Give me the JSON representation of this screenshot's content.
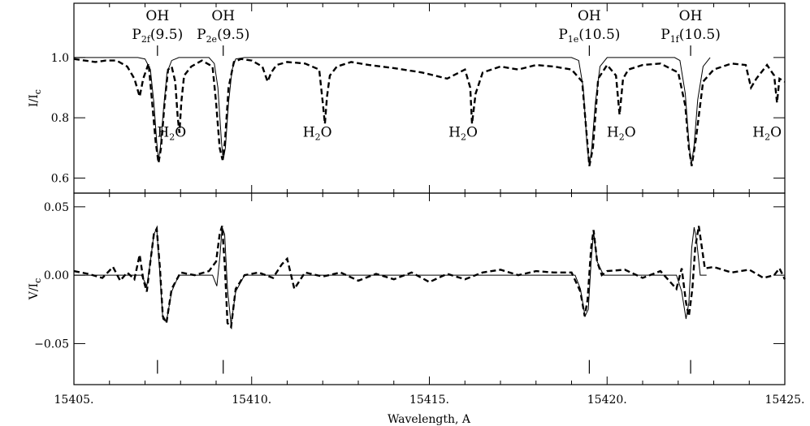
{
  "chart_data": [
    {
      "type": "line",
      "panel": "top",
      "ylabel_main": "I/I",
      "ylabel_sub": "c",
      "xlim": [
        15405,
        15425
      ],
      "ylim": [
        0.55,
        1.18
      ],
      "yticks": [
        0.6,
        0.8,
        1.0
      ],
      "ytick_labels": [
        "0.6",
        "0.8",
        "1.0"
      ],
      "series": [
        {
          "style": "dashed-thick",
          "x": [
            15405.0,
            15405.3,
            15405.6,
            15405.9,
            15406.2,
            15406.5,
            15406.7,
            15406.85,
            15406.95,
            15407.1,
            15407.2,
            15407.3,
            15407.38,
            15407.45,
            15407.55,
            15407.65,
            15407.75,
            15407.85,
            15407.92,
            15407.97,
            15408.02,
            15408.1,
            15408.3,
            15408.6,
            15408.9,
            15409.0,
            15409.1,
            15409.18,
            15409.25,
            15409.35,
            15409.5,
            15409.7,
            15410.0,
            15410.3,
            15410.45,
            15410.55,
            15410.7,
            15411.0,
            15411.5,
            15411.9,
            15412.0,
            15412.06,
            15412.12,
            15412.2,
            15412.4,
            15412.8,
            15413.3,
            15414.0,
            15414.8,
            15415.5,
            15416.0,
            15416.15,
            15416.2,
            15416.3,
            15416.5,
            15417.0,
            15417.5,
            15418.0,
            15418.5,
            15419.0,
            15419.3,
            15419.42,
            15419.5,
            15419.6,
            15419.75,
            15420.0,
            15420.25,
            15420.35,
            15420.45,
            15420.6,
            15421.0,
            15421.5,
            15422.0,
            15422.2,
            15422.3,
            15422.38,
            15422.5,
            15422.7,
            15423.0,
            15423.5,
            15423.9,
            15424.05,
            15424.2,
            15424.5,
            15424.7,
            15424.78,
            15424.85,
            15425.0
          ],
          "y": [
            0.995,
            0.99,
            0.985,
            0.99,
            0.99,
            0.97,
            0.93,
            0.87,
            0.93,
            0.98,
            0.85,
            0.72,
            0.65,
            0.7,
            0.85,
            0.96,
            0.97,
            0.92,
            0.8,
            0.75,
            0.85,
            0.94,
            0.97,
            0.99,
            0.97,
            0.85,
            0.7,
            0.66,
            0.72,
            0.9,
            0.985,
            0.995,
            0.99,
            0.97,
            0.92,
            0.95,
            0.975,
            0.985,
            0.98,
            0.96,
            0.85,
            0.78,
            0.87,
            0.94,
            0.97,
            0.985,
            0.975,
            0.965,
            0.95,
            0.93,
            0.96,
            0.9,
            0.78,
            0.88,
            0.95,
            0.97,
            0.96,
            0.975,
            0.97,
            0.96,
            0.92,
            0.75,
            0.64,
            0.7,
            0.93,
            0.975,
            0.94,
            0.81,
            0.93,
            0.96,
            0.975,
            0.98,
            0.95,
            0.84,
            0.7,
            0.64,
            0.73,
            0.92,
            0.96,
            0.98,
            0.975,
            0.9,
            0.93,
            0.975,
            0.94,
            0.85,
            0.93,
            0.92
          ]
        },
        {
          "style": "solid-thin",
          "x": [
            15405.0,
            15406.8,
            15407.0,
            15407.15,
            15407.25,
            15407.33,
            15407.38,
            15407.43,
            15407.52,
            15407.62,
            15407.75,
            15407.95,
            15408.8,
            15408.95,
            15409.05,
            15409.15,
            15409.2,
            15409.26,
            15409.35,
            15409.45,
            15409.55,
            15409.8,
            15419.0,
            15419.2,
            15419.33,
            15419.43,
            15419.5,
            15419.57,
            15419.67,
            15419.8,
            15420.0,
            15421.9,
            15422.05,
            15422.2,
            15422.3,
            15422.37,
            15422.45,
            15422.55,
            15422.7,
            15422.9
          ],
          "y": [
            1.0,
            1.0,
            0.995,
            0.96,
            0.85,
            0.72,
            0.66,
            0.7,
            0.83,
            0.95,
            0.99,
            1.0,
            1.0,
            0.98,
            0.9,
            0.72,
            0.66,
            0.7,
            0.85,
            0.96,
            0.995,
            1.0,
            1.0,
            0.99,
            0.9,
            0.72,
            0.64,
            0.7,
            0.85,
            0.97,
            1.0,
            1.0,
            0.99,
            0.88,
            0.72,
            0.64,
            0.71,
            0.86,
            0.97,
            1.0
          ]
        }
      ],
      "annotations": [
        {
          "x": 15407.35,
          "label_top": "OH",
          "main": "P",
          "sub": "2f",
          "tail": "(9.5)",
          "tick_y": [
            1.04,
            1.0
          ]
        },
        {
          "x": 15409.2,
          "label_top": "OH",
          "main": "P",
          "sub": "2e",
          "tail": "(9.5)",
          "tick_y": [
            1.04,
            1.0
          ]
        },
        {
          "x": 15419.5,
          "label_top": "OH",
          "main": "P",
          "sub": "1e",
          "tail": "(10.5)",
          "tick_y": [
            1.04,
            1.0
          ]
        },
        {
          "x": 15422.35,
          "label_top": "OH",
          "main": "P",
          "sub": "1f",
          "tail": "(10.5)",
          "tick_y": [
            1.04,
            1.0
          ]
        }
      ],
      "h2o_labels": [
        {
          "x": 15407.75,
          "y": 0.75,
          "main": "H",
          "sub": "2",
          "tail": "O"
        },
        {
          "x": 15411.85,
          "y": 0.75,
          "main": "H",
          "sub": "2",
          "tail": "O"
        },
        {
          "x": 15415.95,
          "y": 0.75,
          "main": "H",
          "sub": "2",
          "tail": "O"
        },
        {
          "x": 15420.4,
          "y": 0.75,
          "main": "H",
          "sub": "2",
          "tail": "O"
        },
        {
          "x": 15424.5,
          "y": 0.75,
          "main": "H",
          "sub": "2",
          "tail": "O"
        }
      ]
    },
    {
      "type": "line",
      "panel": "bottom",
      "ylabel_main": "V/I",
      "ylabel_sub": "c",
      "xlabel": "Wavelength, A",
      "xlim": [
        15405,
        15425
      ],
      "ylim": [
        -0.08,
        0.06
      ],
      "yticks": [
        -0.05,
        0.0,
        0.05
      ],
      "ytick_labels": [
        "−0.05",
        "0.00",
        "0.05"
      ],
      "xticks": [
        15405,
        15410,
        15415,
        15420,
        15425
      ],
      "xtick_labels": [
        "15405.",
        "15410.",
        "15415.",
        "15420.",
        "15425."
      ],
      "series": [
        {
          "style": "dashed-thick",
          "x": [
            15405.0,
            15405.4,
            15405.8,
            15406.1,
            15406.3,
            15406.5,
            15406.7,
            15406.85,
            15406.95,
            15407.05,
            15407.15,
            15407.25,
            15407.33,
            15407.42,
            15407.5,
            15407.6,
            15407.75,
            15408.0,
            15408.4,
            15408.8,
            15409.0,
            15409.1,
            15409.17,
            15409.25,
            15409.32,
            15409.42,
            15409.55,
            15409.8,
            15410.2,
            15410.6,
            15410.85,
            15411.0,
            15411.2,
            15411.5,
            15412.0,
            15412.5,
            15413.0,
            15413.5,
            15414.0,
            15414.5,
            15415.0,
            15415.5,
            15416.0,
            15416.5,
            15417.0,
            15417.5,
            15418.0,
            15418.5,
            15419.0,
            15419.25,
            15419.37,
            15419.45,
            15419.55,
            15419.62,
            15419.72,
            15419.85,
            15420.0,
            15420.5,
            15421.0,
            15421.5,
            15421.95,
            15422.1,
            15422.22,
            15422.3,
            15422.4,
            15422.48,
            15422.58,
            15422.75,
            15423.0,
            15423.5,
            15424.0,
            15424.4,
            15424.7,
            15424.85,
            15425.0
          ],
          "y": [
            0.003,
            0.001,
            -0.002,
            0.006,
            -0.004,
            0.002,
            -0.003,
            0.015,
            -0.003,
            -0.012,
            0.01,
            0.03,
            0.034,
            0.005,
            -0.03,
            -0.035,
            -0.01,
            0.002,
            0.0,
            0.003,
            0.01,
            0.03,
            0.036,
            0.005,
            -0.035,
            -0.038,
            -0.01,
            0.0,
            0.002,
            -0.002,
            0.008,
            0.012,
            -0.01,
            0.002,
            -0.001,
            0.002,
            -0.004,
            0.001,
            -0.003,
            0.002,
            -0.005,
            0.001,
            -0.003,
            0.002,
            0.004,
            0.0,
            0.003,
            0.002,
            0.002,
            -0.012,
            -0.03,
            -0.018,
            0.02,
            0.033,
            0.01,
            0.0,
            0.003,
            0.004,
            -0.002,
            0.003,
            -0.01,
            0.005,
            -0.02,
            -0.03,
            -0.01,
            0.02,
            0.036,
            0.005,
            0.006,
            0.002,
            0.004,
            -0.002,
            0.0,
            0.005,
            -0.003
          ]
        },
        {
          "style": "solid-thin",
          "x": [
            15405.0,
            15406.9,
            15407.05,
            15407.15,
            15407.25,
            15407.33,
            15407.42,
            15407.5,
            15407.6,
            15407.75,
            15407.95,
            15408.9,
            15409.02,
            15409.1,
            15409.17,
            15409.24,
            15409.32,
            15409.42,
            15409.55,
            15409.8,
            15419.1,
            15419.25,
            15419.38,
            15419.47,
            15419.55,
            15419.62,
            15419.72,
            15419.9,
            15421.95,
            15422.1,
            15422.22,
            15422.3,
            15422.38,
            15422.45,
            15422.52,
            15422.62,
            15422.8
          ],
          "y": [
            0.0,
            0.0,
            -0.008,
            0.01,
            0.03,
            0.034,
            0.0,
            -0.032,
            -0.034,
            -0.012,
            0.0,
            0.0,
            -0.008,
            0.012,
            0.035,
            0.03,
            -0.01,
            -0.036,
            -0.012,
            0.0,
            0.0,
            -0.01,
            -0.03,
            -0.025,
            0.01,
            0.032,
            0.01,
            0.0,
            0.0,
            -0.012,
            -0.032,
            -0.02,
            0.02,
            0.035,
            0.025,
            0.0,
            0.0
          ]
        }
      ],
      "marker_ticks_x": [
        15407.35,
        15409.2,
        15419.5,
        15422.35
      ],
      "marker_tick_y": [
        -0.062,
        -0.072
      ]
    }
  ]
}
